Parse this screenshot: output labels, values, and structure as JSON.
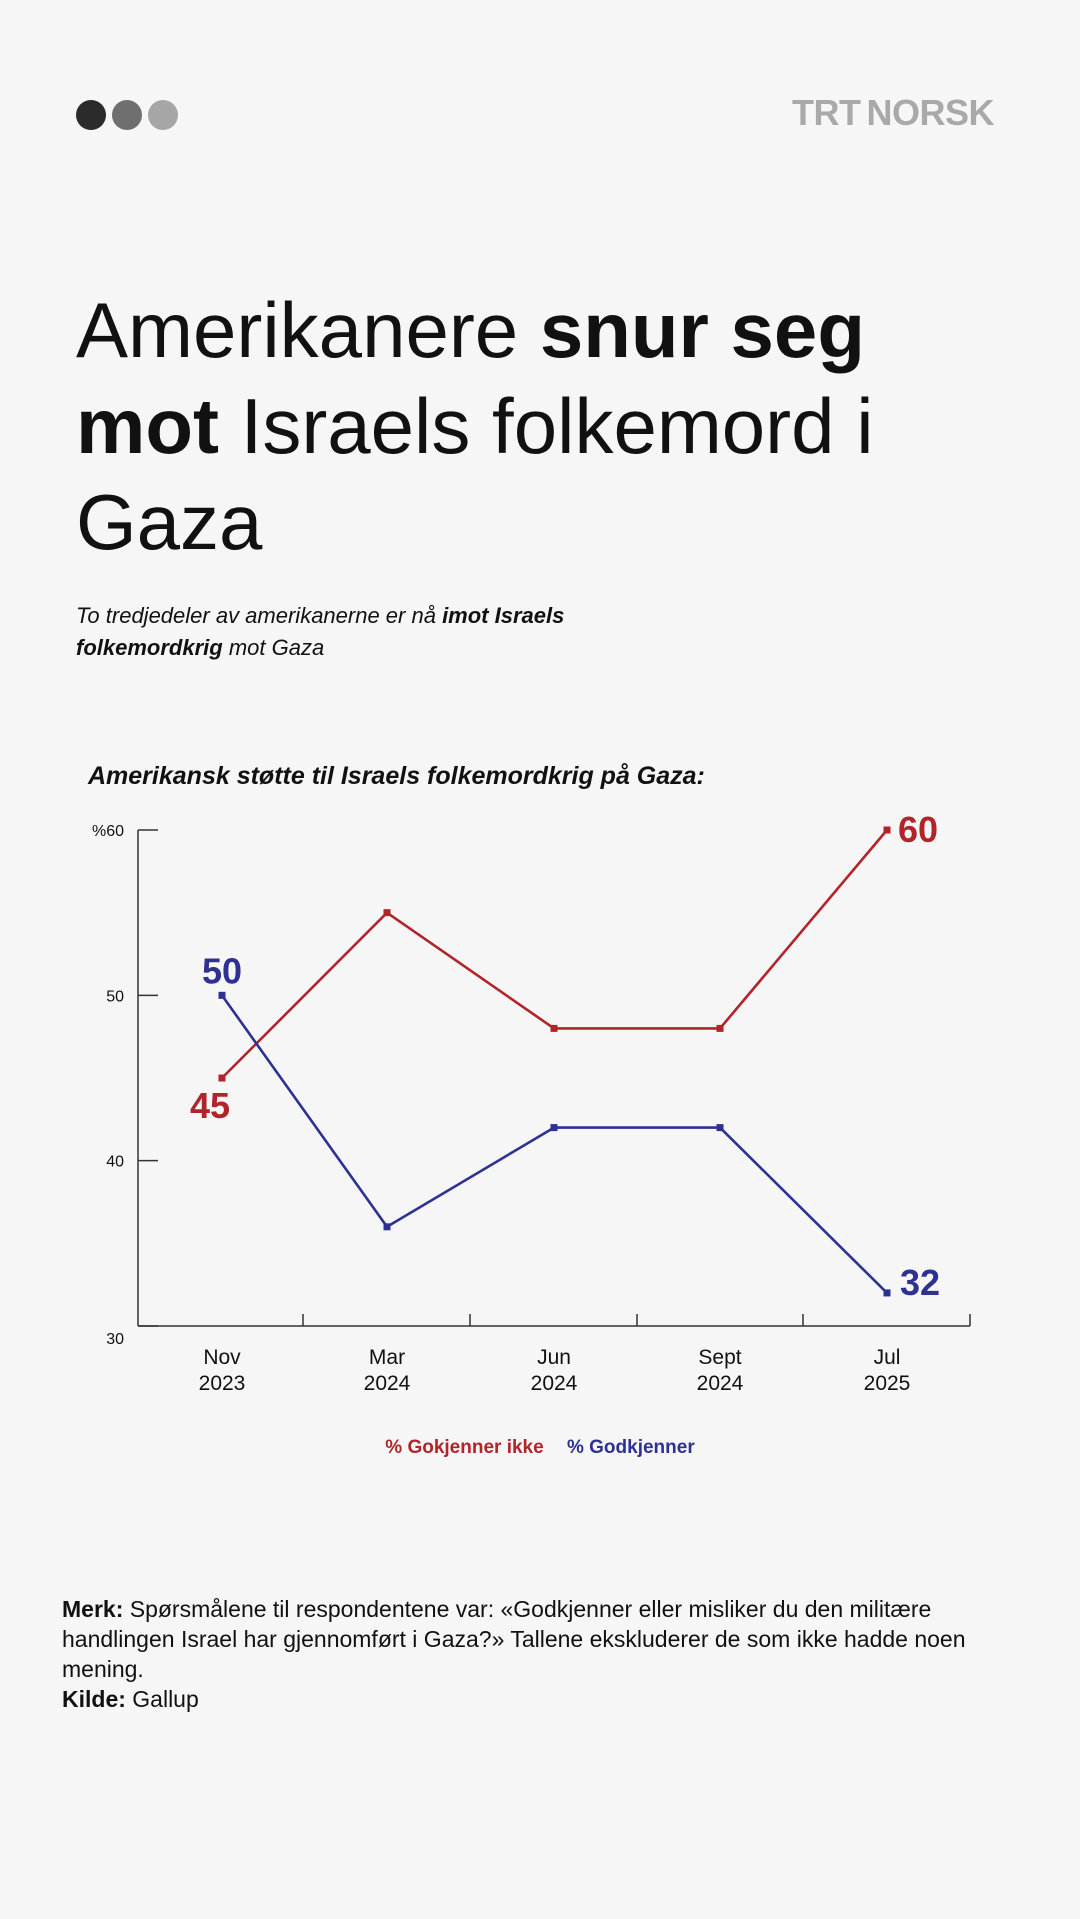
{
  "brand": {
    "logo_bold": "TRT",
    "logo_light": "NORSK",
    "dots": [
      "#2b2b2b",
      "#6f6f6f",
      "#a6a6a6"
    ]
  },
  "headline": {
    "part1": "Amerikanere ",
    "bold1": "snur seg mot",
    "part2": " Israels folkemord i Gaza"
  },
  "subtitle": {
    "part1": "To tredjedeler av amerikanerne er nå ",
    "bold": "imot Israels folkemordkrig",
    "part2": " mot Gaza"
  },
  "chart_data": {
    "type": "line",
    "title": "Amerikansk støtte til Israels folkemordkrig på Gaza:",
    "categories": [
      [
        "Nov",
        "2023"
      ],
      [
        "Mar",
        "2024"
      ],
      [
        "Jun",
        "2024"
      ],
      [
        "Sept",
        "2024"
      ],
      [
        "Jul",
        "2025"
      ]
    ],
    "ylim": [
      30,
      60
    ],
    "yticks": [
      30,
      40,
      50,
      60
    ],
    "ytick_labels": [
      "30",
      "40",
      "50",
      "%60"
    ],
    "series": [
      {
        "name": "% Gokjenner ikke",
        "color": "#b0242a",
        "values": [
          45,
          55,
          48,
          48,
          60
        ],
        "labels": {
          "0": "45",
          "4": "60"
        }
      },
      {
        "name": "% Godkjenner",
        "color": "#2e3192",
        "values": [
          50,
          36,
          42,
          42,
          32
        ],
        "labels": {
          "0": "50",
          "4": "32"
        }
      }
    ],
    "grid": false,
    "legend": "bottom-center"
  },
  "note": {
    "merk_label": "Merk:",
    "merk_text": " Spørsmålene til respondentene var: «Godkjenner eller misliker du den militære handlingen Israel har gjennomført i Gaza?» Tallene ekskluderer de som ikke hadde noen mening.",
    "kilde_label": "Kilde:",
    "kilde_text": " Gallup"
  }
}
